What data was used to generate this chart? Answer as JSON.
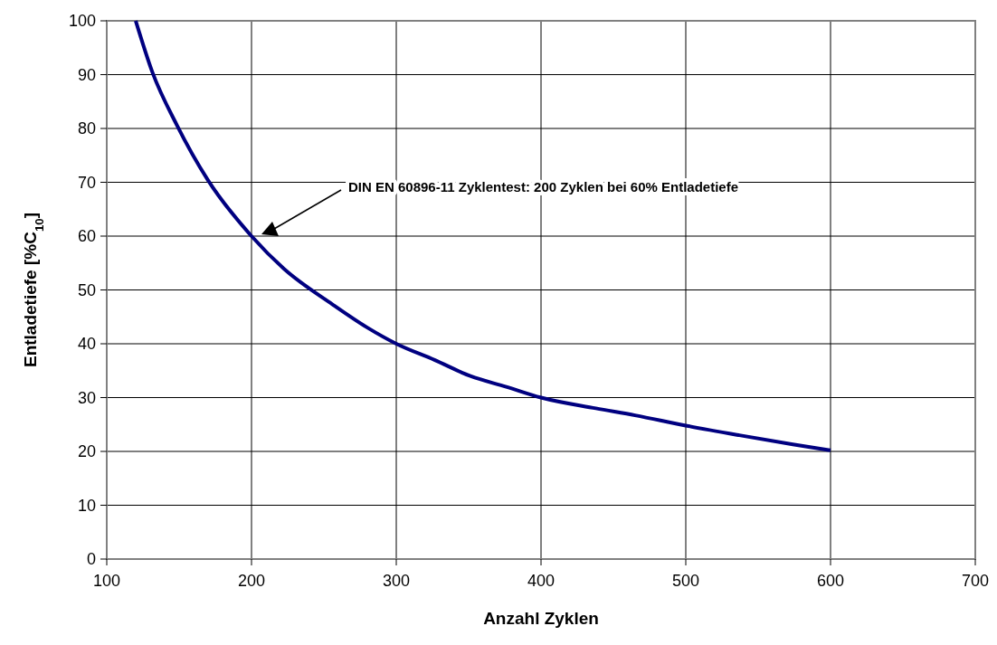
{
  "chart_data": {
    "type": "line",
    "xlabel": "Anzahl Zyklen",
    "ylabel": "Entladetiefe [%C$_{10}$]",
    "x": [
      120,
      131.6,
      148.3,
      169.9,
      200,
      222.5,
      256,
      280,
      300,
      326.4,
      351.2,
      376,
      400,
      437.9,
      465,
      500,
      537,
      574,
      600
    ],
    "series": [
      {
        "color": "#000080",
        "values": [
          100,
          90.4,
          80.7,
          70.4,
          60,
          53.9,
          47.3,
          43,
          40,
          37,
          34,
          32,
          30,
          28,
          26.7,
          24.8,
          23,
          21.3,
          20.2
        ]
      }
    ],
    "xlim": [
      100,
      700
    ],
    "xticks": [
      100,
      200,
      300,
      400,
      500,
      600,
      700
    ],
    "ylim": [
      0,
      100
    ],
    "yticks": [
      0,
      10,
      20,
      30,
      40,
      50,
      60,
      70,
      80,
      90,
      100
    ],
    "grid": true,
    "marker": "none",
    "line_style": "solid",
    "annotations": [
      "DIN EN 60896-11 Zyklentest: 200 Zyklen bei 60% Entladetiefe"
    ]
  }
}
